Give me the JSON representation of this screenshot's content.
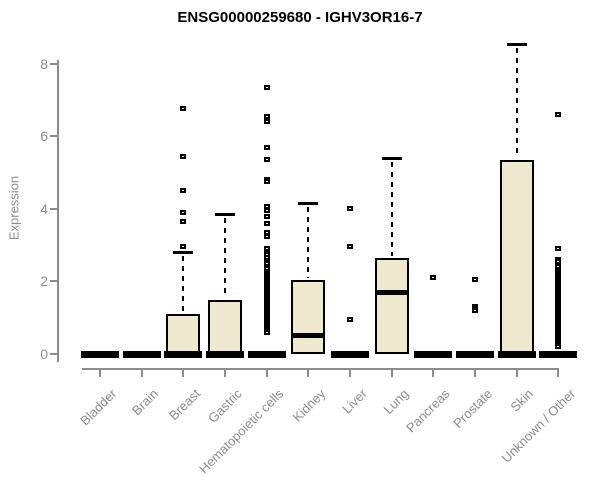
{
  "chart_data": {
    "type": "boxplot",
    "title": "ENSG00000259680 - IGHV3OR16-7",
    "xlabel": "",
    "ylabel": "Expression",
    "ylim": [
      0,
      8.6
    ],
    "yticks": [
      0,
      2,
      4,
      6,
      8
    ],
    "grid": false,
    "legend": "none",
    "categories": [
      "Bladder",
      "Brain",
      "Breast",
      "Gastric",
      "Hematopoietic cells",
      "Kidney",
      "Liver",
      "Lung",
      "Pancreas",
      "Prostate",
      "Skin",
      "Unknown / Other"
    ],
    "series": [
      {
        "name": "Bladder",
        "whisker_low": 0,
        "q1": 0,
        "median": 0,
        "q3": 0,
        "whisker_high": 0,
        "outliers": []
      },
      {
        "name": "Brain",
        "whisker_low": 0,
        "q1": 0,
        "median": 0,
        "q3": 0,
        "whisker_high": 0,
        "outliers": []
      },
      {
        "name": "Breast",
        "whisker_low": 0,
        "q1": 0,
        "median": 0,
        "q3": 1.1,
        "whisker_high": 2.8,
        "outliers": [
          6.75,
          5.45,
          4.5,
          3.9,
          3.65,
          2.95
        ]
      },
      {
        "name": "Gastric",
        "whisker_low": 0,
        "q1": 0,
        "median": 0,
        "q3": 1.5,
        "whisker_high": 3.85,
        "outliers": []
      },
      {
        "name": "Hematopoietic cells",
        "whisker_low": 0,
        "q1": 0,
        "median": 0,
        "q3": 0,
        "whisker_high": 0,
        "outliers": [
          7.35,
          6.55,
          6.4,
          5.7,
          5.35,
          4.8,
          4.75,
          4.05,
          3.95,
          3.8,
          3.6,
          3.35,
          3.25,
          2.9,
          2.8,
          2.75,
          2.65,
          2.55,
          2.5,
          2.4,
          2.35,
          2.25,
          2.2,
          2.15,
          2.1,
          2.05,
          2.0,
          1.95,
          1.9,
          1.85,
          1.8,
          1.75,
          1.7,
          1.65,
          1.6,
          1.55,
          1.5,
          1.45,
          1.4,
          1.35,
          1.3,
          1.25,
          1.2,
          1.15,
          1.1,
          1.05,
          1.0,
          0.95,
          0.9,
          0.85,
          0.8,
          0.75,
          0.7,
          0.65,
          0.6
        ]
      },
      {
        "name": "Kidney",
        "whisker_low": 0,
        "q1": 0,
        "median": 0.5,
        "q3": 2.05,
        "whisker_high": 4.15,
        "outliers": []
      },
      {
        "name": "Liver",
        "whisker_low": 0,
        "q1": 0,
        "median": 0,
        "q3": 0,
        "whisker_high": 0,
        "outliers": [
          4.0,
          2.95,
          0.95
        ]
      },
      {
        "name": "Lung",
        "whisker_low": 0,
        "q1": 0,
        "median": 1.7,
        "q3": 2.65,
        "whisker_high": 5.4,
        "outliers": []
      },
      {
        "name": "Pancreas",
        "whisker_low": 0,
        "q1": 0,
        "median": 0,
        "q3": 0,
        "whisker_high": 0,
        "outliers": [
          2.1
        ]
      },
      {
        "name": "Prostate",
        "whisker_low": 0,
        "q1": 0,
        "median": 0,
        "q3": 0,
        "whisker_high": 0,
        "outliers": [
          2.05,
          1.3,
          1.25,
          1.2
        ]
      },
      {
        "name": "Skin",
        "whisker_low": 0,
        "q1": 0,
        "median": 0,
        "q3": 5.35,
        "whisker_high": 8.55,
        "outliers": []
      },
      {
        "name": "Unknown / Other",
        "whisker_low": 0,
        "q1": 0,
        "median": 0,
        "q3": 0,
        "whisker_high": 0,
        "outliers": [
          6.6,
          2.9,
          2.6,
          2.55,
          2.45,
          2.4,
          2.3,
          2.25,
          2.2,
          2.15,
          2.1,
          2.05,
          2.0,
          1.95,
          1.9,
          1.85,
          1.8,
          1.75,
          1.7,
          1.65,
          1.6,
          1.55,
          1.5,
          1.45,
          1.4,
          1.35,
          1.3,
          1.25,
          1.2,
          1.15,
          1.1,
          1.05,
          1.0,
          0.95,
          0.9,
          0.85,
          0.8,
          0.75,
          0.7,
          0.65,
          0.6,
          0.55,
          0.5,
          0.45,
          0.4,
          0.35,
          0.3,
          0.25,
          0.2
        ]
      }
    ]
  },
  "styles": {
    "box_fill": "#EDE8CE",
    "box_border": "#000000",
    "median_color": "#000000",
    "axis_color": "#8C8C8C",
    "label_color": "#8C8C8C",
    "title_color": "#000000",
    "background": "#FFFFFF"
  }
}
